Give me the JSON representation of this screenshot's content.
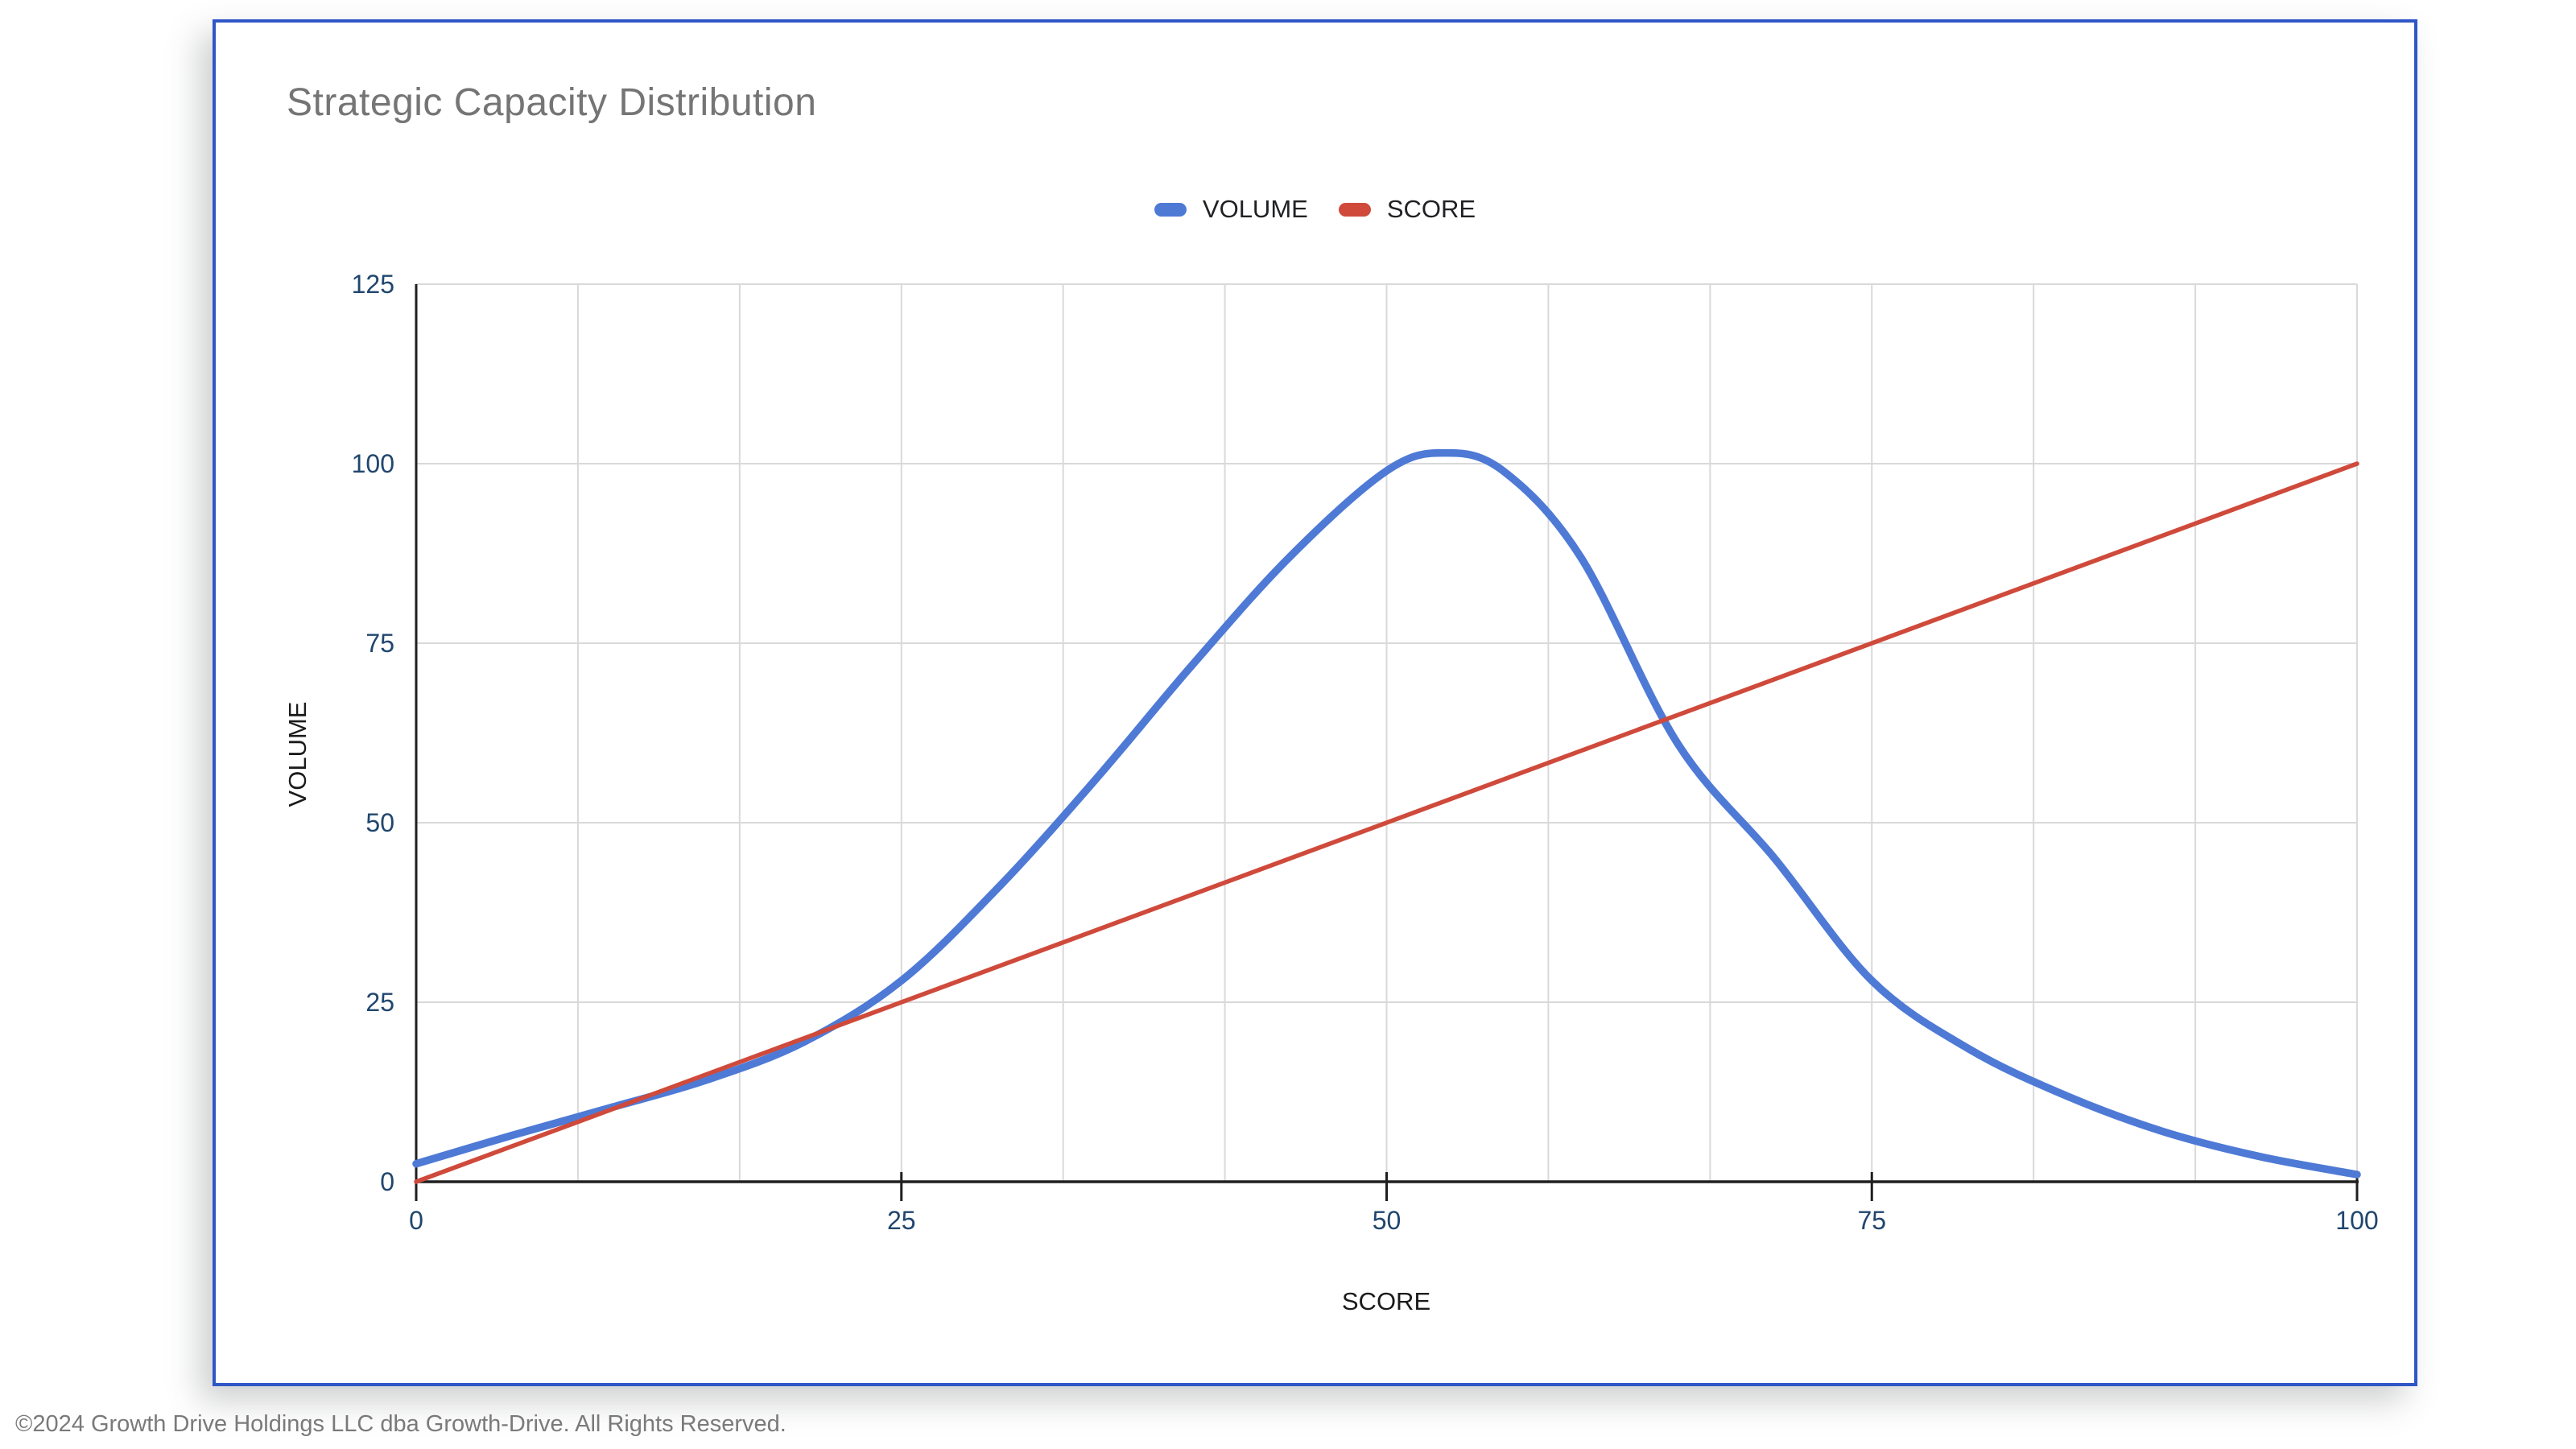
{
  "page": {
    "footer": "©2024 Growth Drive Holdings LLC dba Growth-Drive. All Rights Reserved.",
    "card_border_color": "#2e56c6"
  },
  "chart": {
    "title": "Strategic Capacity Distribution",
    "x_axis_title": "SCORE",
    "y_axis_title": "VOLUME",
    "legend": [
      {
        "label": "VOLUME",
        "color": "#4e7ad6"
      },
      {
        "label": "SCORE",
        "color": "#cf4a3b"
      }
    ]
  },
  "chart_data": {
    "type": "line",
    "title": "Strategic Capacity Distribution",
    "xlabel": "SCORE",
    "ylabel": "VOLUME",
    "xlim": [
      0,
      100
    ],
    "ylim": [
      0,
      125
    ],
    "x_ticks": [
      0,
      25,
      50,
      75,
      100
    ],
    "y_ticks": [
      0,
      25,
      50,
      75,
      100,
      125
    ],
    "x_minor_divisions": 12,
    "grid": true,
    "legend_position": "top",
    "axis_label_color": "#20466e",
    "gridline_color": "#d9d9d9",
    "axis_line_color": "#1f1f1f",
    "series": [
      {
        "name": "VOLUME",
        "color": "#4e7ad6",
        "smooth": true,
        "stroke_width": 9.5,
        "points": [
          [
            0,
            2.5
          ],
          [
            5,
            6.5
          ],
          [
            10,
            10.3
          ],
          [
            15,
            14.2
          ],
          [
            20,
            19.5
          ],
          [
            25,
            28
          ],
          [
            30,
            41
          ],
          [
            35,
            56
          ],
          [
            40,
            72
          ],
          [
            45,
            87
          ],
          [
            50,
            99
          ],
          [
            53,
            101.5
          ],
          [
            56,
            99
          ],
          [
            60,
            87
          ],
          [
            65,
            61
          ],
          [
            70,
            45
          ],
          [
            75,
            28
          ],
          [
            80,
            18.5
          ],
          [
            85,
            12
          ],
          [
            90,
            7
          ],
          [
            95,
            3.5
          ],
          [
            100,
            1
          ]
        ]
      },
      {
        "name": "SCORE",
        "color": "#cf4a3b",
        "smooth": false,
        "stroke_width": 5.5,
        "points": [
          [
            0,
            0
          ],
          [
            100,
            100
          ]
        ]
      }
    ]
  }
}
